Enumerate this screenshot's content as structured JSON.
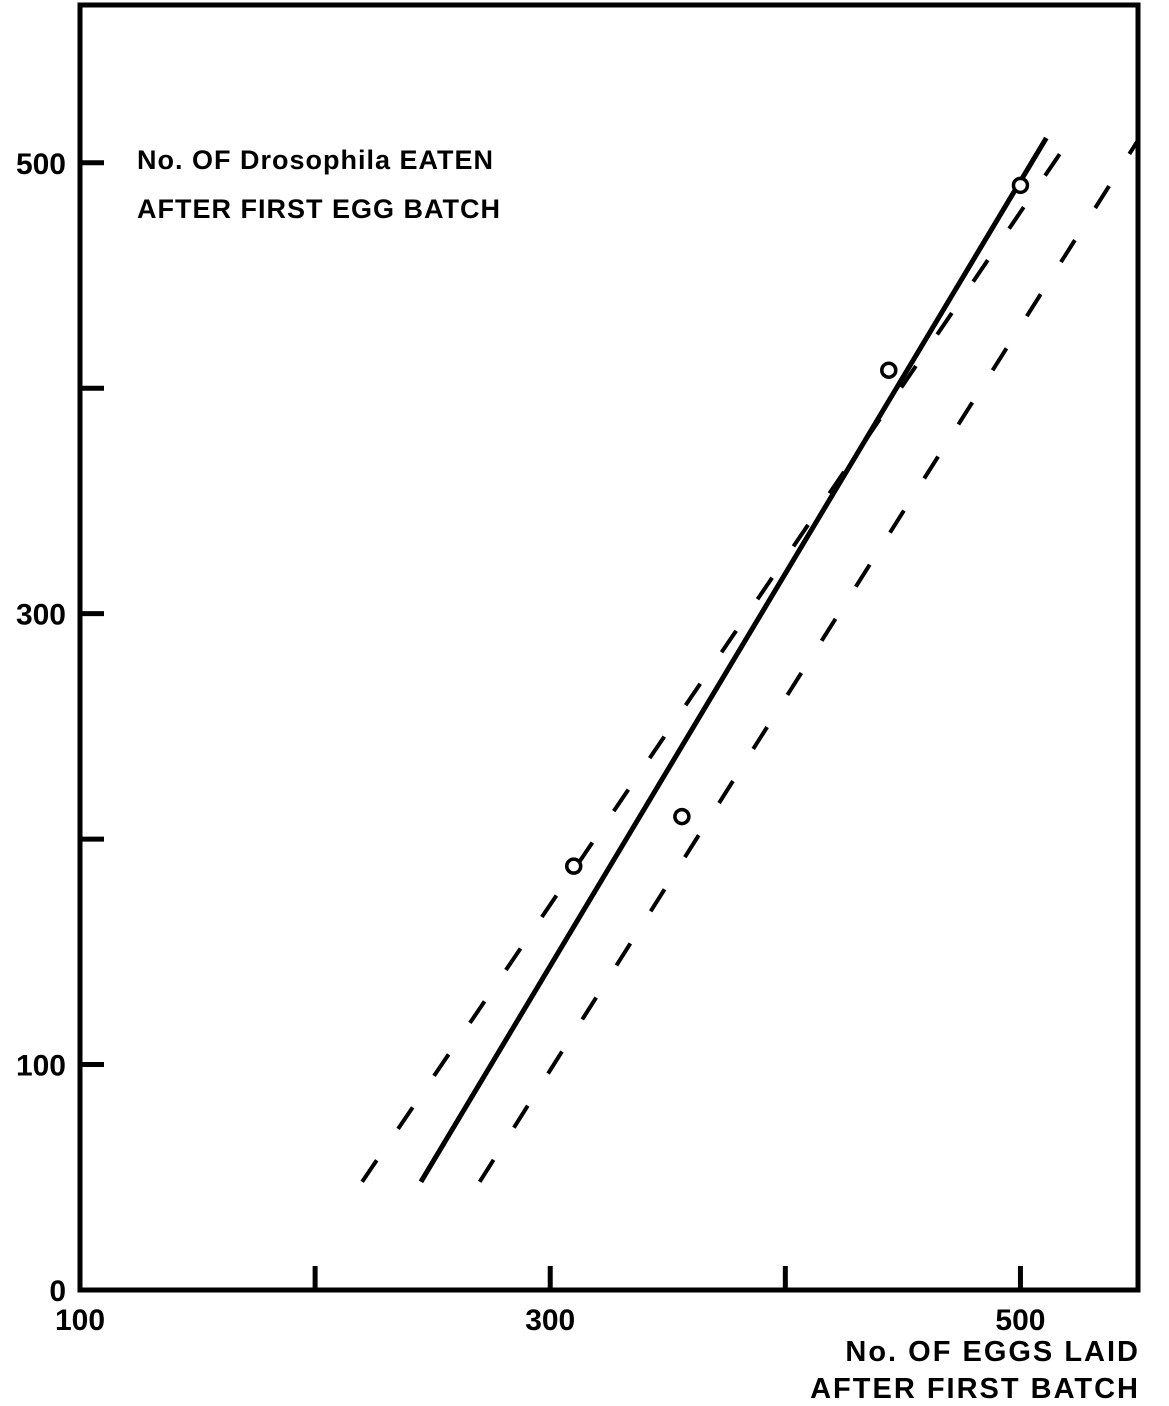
{
  "chart_data": {
    "type": "scatter",
    "title": "",
    "ylabel_lines": [
      "No. OF Drosophila EATEN",
      "AFTER FIRST EGG BATCH"
    ],
    "xlabel_lines": [
      "No. OF EGGS LAID",
      "AFTER FIRST BATCH"
    ],
    "xlim": [
      100,
      550
    ],
    "ylim": [
      0,
      570
    ],
    "x_ticks": [
      100,
      200,
      300,
      400,
      500
    ],
    "x_tick_labels": [
      "100",
      "",
      "300",
      "",
      "500"
    ],
    "y_ticks": [
      0,
      100,
      200,
      300,
      400,
      500
    ],
    "y_tick_labels": [
      "0",
      "100",
      "",
      "300",
      "",
      "500"
    ],
    "points": [
      {
        "x": 310,
        "y": 188
      },
      {
        "x": 356,
        "y": 210
      },
      {
        "x": 444,
        "y": 408
      },
      {
        "x": 500,
        "y": 490
      }
    ],
    "fit_line": {
      "x": [
        245,
        511
      ],
      "y": [
        48,
        511
      ]
    },
    "confidence_bands": [
      {
        "x": [
          220,
          522
        ],
        "y": [
          48,
          512
        ]
      },
      {
        "x": [
          270,
          550
        ],
        "y": [
          48,
          510
        ]
      }
    ],
    "grid": false,
    "colors": {
      "ink": "#000000",
      "background": "#ffffff"
    }
  }
}
